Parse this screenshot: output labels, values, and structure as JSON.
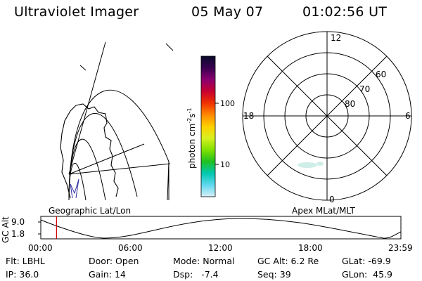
{
  "header": {
    "instrument": "Ultraviolet Imager",
    "date": "05 May 07",
    "time": "01:02:56 UT"
  },
  "colorbar": {
    "label_main": "photon cm",
    "label_exp1": "-2",
    "label_s": "s",
    "label_exp2": "-1",
    "ticks": [
      "100",
      "10"
    ],
    "colors": [
      "#0a0a2a",
      "#3a0050",
      "#8a0070",
      "#c80030",
      "#f03000",
      "#ff8800",
      "#ffd000",
      "#d8f020",
      "#80e000",
      "#20c020",
      "#00c8b0",
      "#60d8f0",
      "#d8f0f8"
    ]
  },
  "geo_map": {
    "label": "Geographic Lat/Lon",
    "frame_color": "#000000",
    "track_color": "#3030a0"
  },
  "polar_plot": {
    "label": "Apex MLat/MLT",
    "mlt_labels": {
      "top": "12",
      "left": "18",
      "right": "6",
      "bottom": "0"
    },
    "lat_labels": [
      "60",
      "70",
      "80"
    ],
    "aurora_color": "#cfeee8"
  },
  "altitude_plot": {
    "axis_label": "GC Alt",
    "y_ticks": [
      "9.0",
      "1.8"
    ],
    "x_ticks": [
      "00:00",
      "06:00",
      "12:00",
      "18:00",
      "23:59"
    ],
    "current_time_fraction": 0.0437,
    "marker_color": "#d00000"
  },
  "info": {
    "flt_label": "Flt:",
    "flt_value": "LBHL",
    "ip_label": "IP:",
    "ip_value": "36.0",
    "door_label": "Door:",
    "door_value": "Open",
    "gain_label": "Gain:",
    "gain_value": "14",
    "mode_label": "Mode:",
    "mode_value": "Normal",
    "dsp_label": "Dsp:",
    "dsp_value": "-7.4",
    "gcalt_label": "GC Alt:",
    "gcalt_value": "6.2 Re",
    "seq_label": "Seq:",
    "seq_value": "39",
    "glat_label": "GLat:",
    "glat_value": "-69.9",
    "glon_label": "GLon:",
    "glon_value": "45.9"
  }
}
